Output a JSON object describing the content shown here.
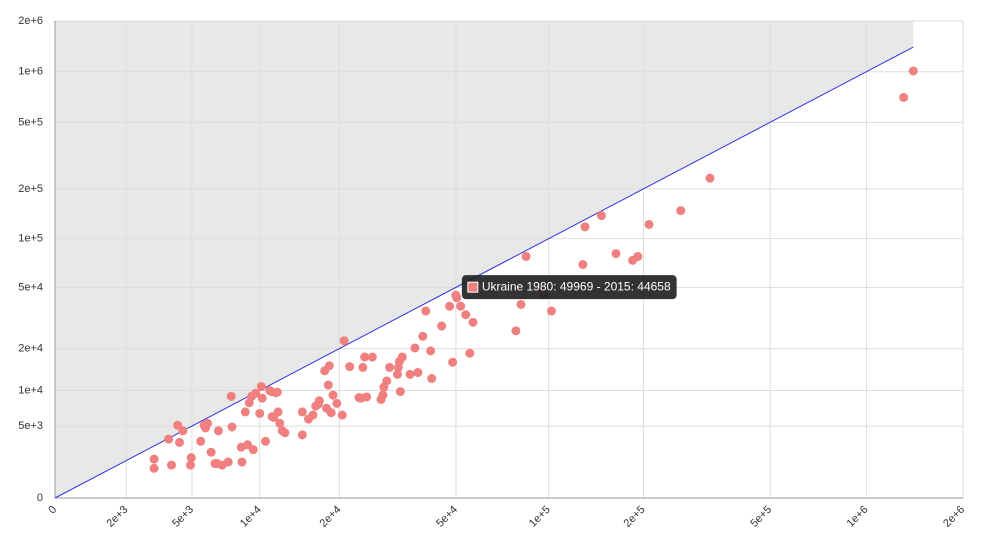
{
  "chart_data": {
    "type": "scatter",
    "xscale": "symlog",
    "yscale": "symlog",
    "grid": true,
    "xlim": [
      0,
      2000000
    ],
    "ylim": [
      0,
      2000000
    ],
    "xticks": [
      0,
      {
        "value": 2000,
        "label": "2e+3"
      },
      {
        "value": 5000,
        "label": "5e+3"
      },
      {
        "value": 10000,
        "label": "1e+4"
      },
      {
        "value": 20000,
        "label": "2e+4"
      },
      {
        "value": 50000,
        "label": "5e+4"
      },
      {
        "value": 100000,
        "label": "1e+5"
      },
      {
        "value": 200000,
        "label": "2e+5"
      },
      {
        "value": 500000,
        "label": "5e+5"
      },
      {
        "value": 1000000,
        "label": "1e+6"
      },
      {
        "value": 2000000,
        "label": "2e+6"
      }
    ],
    "yticks": [
      0,
      {
        "value": 5000,
        "label": "5e+3"
      },
      {
        "value": 10000,
        "label": "1e+4"
      },
      {
        "value": 20000,
        "label": "2e+4"
      },
      {
        "value": 50000,
        "label": "5e+4"
      },
      {
        "value": 100000,
        "label": "1e+5"
      },
      {
        "value": 200000,
        "label": "2e+5"
      },
      {
        "value": 500000,
        "label": "5e+5"
      },
      {
        "value": 1000000,
        "label": "1e+6"
      },
      {
        "value": 2000000,
        "label": "2e+6"
      }
    ],
    "reference_line": {
      "x": [
        0,
        1400000
      ],
      "y": [
        0,
        1400000
      ],
      "color": "#3333dd"
    },
    "shade_color": "#e8e8e8",
    "series": [
      {
        "color": "#f08080",
        "x": [
          3100,
          3100,
          3770,
          3910,
          4220,
          4320,
          4500,
          4920,
          4960,
          5520,
          5730,
          5820,
          5950,
          6180,
          6430,
          6580,
          6670,
          6930,
          7370,
          7600,
          7660,
          8390,
          8450,
          8720,
          8920,
          9060,
          9270,
          9410,
          9630,
          10000,
          10150,
          10230,
          10550,
          10960,
          11130,
          11210,
          11380,
          11560,
          11740,
          11820,
          12010,
          12280,
          12570,
          14640,
          14640,
          15440,
          16040,
          16410,
          16790,
          16920,
          17710,
          17980,
          18250,
          18400,
          18690,
          18980,
          19580,
          20480,
          20800,
          21760,
          23480,
          23840,
          24210,
          24580,
          24960,
          26130,
          28000,
          28410,
          28630,
          29290,
          29960,
          31850,
          32100,
          32340,
          32590,
          33090,
          35150,
          36520,
          37370,
          38800,
          39710,
          41220,
          41560,
          44850,
          49969,
          47660,
          48770,
          50280,
          51820,
          53850,
          55550,
          56900,
          78440,
          81460,
          84600,
          96230,
          102100,
          128600,
          130600,
          147300,
          163800,
          184900,
          192000,
          208300,
          262200,
          324000,
          1306000,
          1400000
        ],
        "y": [
          2100,
          1500,
          3700,
          1700,
          5100,
          3400,
          4500,
          1700,
          2200,
          3500,
          5100,
          4800,
          5300,
          2600,
          1800,
          1800,
          4500,
          1700,
          1900,
          9000,
          4900,
          3000,
          1900,
          6700,
          3200,
          8000,
          9000,
          2800,
          9500,
          6500,
          10700,
          8700,
          3500,
          10000,
          9800,
          6100,
          6000,
          9600,
          9700,
          6700,
          5300,
          4500,
          4300,
          4100,
          6700,
          5800,
          6300,
          7500,
          7800,
          8300,
          14000,
          7200,
          11000,
          15200,
          6600,
          9200,
          7900,
          6300,
          22600,
          15000,
          8800,
          8700,
          14800,
          17500,
          8900,
          17500,
          8500,
          9200,
          10600,
          11800,
          14800,
          13200,
          14800,
          16300,
          9800,
          17500,
          13200,
          20200,
          13600,
          24200,
          35400,
          19300,
          12300,
          28300,
          44658,
          38000,
          16100,
          43000,
          38000,
          33500,
          18600,
          29900,
          26300,
          39000,
          77800,
          45000,
          35400,
          69400,
          118000,
          138000,
          81000,
          73600,
          77800,
          122000,
          148000,
          232000,
          703000,
          1010000
        ]
      }
    ],
    "tooltip": {
      "point": 84,
      "text": "Ukraine 1980: 49969 - 2015: 44658"
    }
  }
}
